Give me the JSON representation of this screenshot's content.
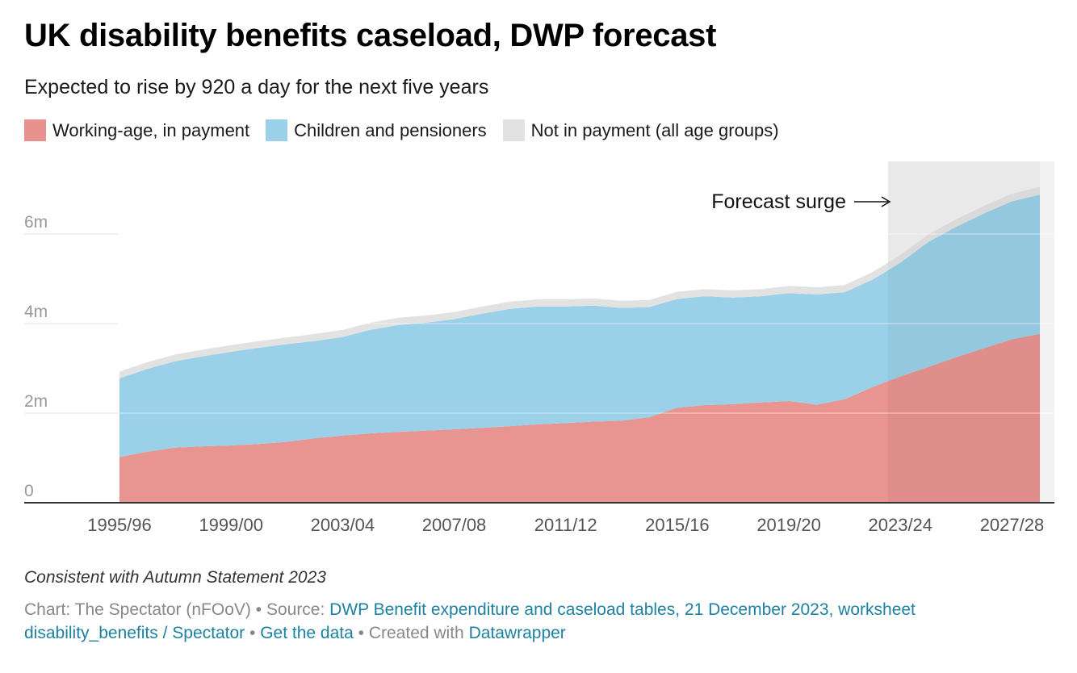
{
  "title": "UK disability benefits caseload, DWP forecast",
  "subtitle": "Expected to rise by 920 a day for the next five years",
  "notes": "Consistent with Autumn Statement 2023",
  "footer": {
    "chart_prefix": "Chart: The Spectator (nFOoV)",
    "source_prefix": "Source:",
    "source_link": "DWP Benefit expenditure and caseload tables, 21 December 2023, worksheet disability_benefits / Spectator",
    "get_data": "Get the data",
    "created_prefix": "Created with",
    "created_link": "Datawrapper",
    "separator": "•"
  },
  "colors": {
    "working_age": "#e8928f",
    "children_pensioners": "#9ad0e8",
    "not_in_payment": "#e2e2e2",
    "forecast_band": "#f2f2f2",
    "link": "#1d81a2"
  },
  "chart_data": {
    "type": "area",
    "stacked": true,
    "x": [
      "1995/96",
      "1996/97",
      "1997/98",
      "1998/99",
      "1999/00",
      "2000/01",
      "2001/02",
      "2002/03",
      "2003/04",
      "2004/05",
      "2005/06",
      "2006/07",
      "2007/08",
      "2008/09",
      "2009/10",
      "2010/11",
      "2011/12",
      "2012/13",
      "2013/14",
      "2014/15",
      "2015/16",
      "2016/17",
      "2017/18",
      "2018/19",
      "2019/20",
      "2020/21",
      "2021/22",
      "2022/23",
      "2023/24",
      "2024/25",
      "2025/26",
      "2026/27",
      "2027/28",
      "2028/29"
    ],
    "x_ticks": [
      "1995/96",
      "1999/00",
      "2003/04",
      "2007/08",
      "2011/12",
      "2015/16",
      "2019/20",
      "2023/24",
      "2027/28"
    ],
    "y_ticks": [
      0,
      2,
      4,
      6
    ],
    "y_tick_labels": [
      "0",
      "2m",
      "4m",
      "6m"
    ],
    "ylim": [
      0,
      7.6
    ],
    "ylabel": "",
    "xlabel": "",
    "grid": true,
    "legend_position": "top-left",
    "series": [
      {
        "name": "Working-age, in payment",
        "color": "#e8928f",
        "values": [
          1.02,
          1.14,
          1.23,
          1.26,
          1.28,
          1.31,
          1.36,
          1.44,
          1.5,
          1.55,
          1.58,
          1.61,
          1.64,
          1.67,
          1.71,
          1.75,
          1.78,
          1.81,
          1.83,
          1.91,
          2.12,
          2.18,
          2.2,
          2.24,
          2.27,
          2.19,
          2.31,
          2.58,
          2.82,
          3.03,
          3.25,
          3.45,
          3.65,
          3.77
        ]
      },
      {
        "name": "Children and pensioners",
        "color": "#9ad0e8",
        "values": [
          1.76,
          1.85,
          1.93,
          2.01,
          2.09,
          2.15,
          2.18,
          2.17,
          2.2,
          2.31,
          2.39,
          2.41,
          2.46,
          2.55,
          2.62,
          2.63,
          2.6,
          2.59,
          2.52,
          2.46,
          2.43,
          2.43,
          2.38,
          2.37,
          2.41,
          2.46,
          2.39,
          2.4,
          2.54,
          2.79,
          2.91,
          3.01,
          3.08,
          3.11
        ]
      },
      {
        "name": "Not in payment (all age groups)",
        "color": "#e2e2e2",
        "values": [
          0.15,
          0.15,
          0.15,
          0.15,
          0.15,
          0.15,
          0.15,
          0.16,
          0.16,
          0.16,
          0.16,
          0.16,
          0.16,
          0.16,
          0.16,
          0.16,
          0.16,
          0.16,
          0.16,
          0.16,
          0.16,
          0.16,
          0.16,
          0.16,
          0.16,
          0.16,
          0.16,
          0.17,
          0.17,
          0.17,
          0.17,
          0.17,
          0.17,
          0.17
        ]
      }
    ],
    "forecast_start": "2022/23",
    "annotation": "Forecast surge"
  }
}
